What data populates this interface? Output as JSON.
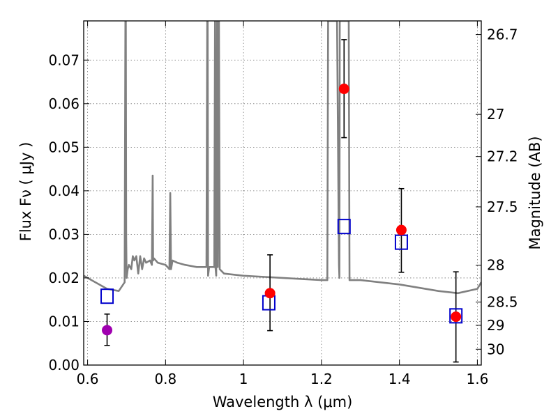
{
  "chart_data": {
    "type": "scatter",
    "title": "",
    "xlabel": "Wavelength  λ (μm)",
    "ylabel": "Flux  Fν ( μJy )",
    "ylabel_right": "Magnitude (AB)",
    "xlim": [
      0.59,
      1.61
    ],
    "ylim": [
      0.0,
      0.079
    ],
    "grid": true,
    "x_ticks": [
      0.6,
      0.8,
      1.0,
      1.2,
      1.4,
      1.6
    ],
    "x_tick_labels": [
      "0.6",
      "0.8",
      "1",
      "1.2",
      "1.4",
      "1.6"
    ],
    "y_ticks": [
      0.0,
      0.01,
      0.02,
      0.03,
      0.04,
      0.05,
      0.06,
      0.07
    ],
    "y_tick_labels": [
      "0.00",
      "0.01",
      "0.02",
      "0.03",
      "0.04",
      "0.05",
      "0.06",
      "0.07"
    ],
    "right_ticks": [
      26.7,
      27.0,
      27.2,
      27.5,
      28.0,
      28.5,
      29.0,
      30.0
    ],
    "right_tick_labels": [
      "26.7",
      "27",
      "27.2",
      "27.5",
      "28",
      "28.5",
      "29",
      "30"
    ],
    "colors": {
      "observed": "#ff0000",
      "observed_extra": "#a000b0",
      "model": "#0000cc",
      "spectrum": "#808080",
      "errorbar": "#000000"
    },
    "observed": [
      {
        "x": 1.068,
        "y": 0.0165,
        "yerr": [
          0.0086,
          0.0088
        ]
      },
      {
        "x": 1.258,
        "y": 0.0634,
        "yerr": [
          0.0112,
          0.0113
        ]
      },
      {
        "x": 1.405,
        "y": 0.031,
        "yerr": [
          0.0097,
          0.0095
        ]
      },
      {
        "x": 1.545,
        "y": 0.0111,
        "yerr": [
          0.0104,
          0.0103
        ]
      }
    ],
    "observed_extra": [
      {
        "x": 0.65,
        "y": 0.008,
        "yerr": [
          0.0035,
          0.0037
        ]
      }
    ],
    "model": [
      {
        "x": 0.65,
        "y": 0.0158
      },
      {
        "x": 1.065,
        "y": 0.0143
      },
      {
        "x": 1.258,
        "y": 0.0318
      },
      {
        "x": 1.405,
        "y": 0.0282
      },
      {
        "x": 1.545,
        "y": 0.0113
      }
    ],
    "spectrum": {
      "x": [
        0.59,
        0.62,
        0.65,
        0.68,
        0.695,
        0.697,
        0.698,
        0.699,
        0.7,
        0.703,
        0.706,
        0.712,
        0.716,
        0.72,
        0.725,
        0.73,
        0.735,
        0.74,
        0.745,
        0.75,
        0.76,
        0.765,
        0.767,
        0.768,
        0.77,
        0.78,
        0.8,
        0.81,
        0.812,
        0.814,
        0.818,
        0.83,
        0.85,
        0.88,
        0.905,
        0.907,
        0.908,
        0.909,
        0.912,
        0.925,
        0.927,
        0.928,
        0.93,
        0.932,
        0.934,
        0.936,
        0.937,
        0.939,
        0.95,
        1.0,
        1.1,
        1.2,
        1.215,
        1.217,
        1.22,
        1.222,
        1.223,
        1.24,
        1.245,
        1.246,
        1.247,
        1.248,
        1.25,
        1.26,
        1.27,
        1.272,
        1.3,
        1.4,
        1.5,
        1.55,
        1.6,
        1.61
      ],
      "y": [
        0.0205,
        0.019,
        0.0175,
        0.017,
        0.019,
        0.079,
        0.079,
        0.03,
        0.02,
        0.022,
        0.023,
        0.022,
        0.025,
        0.024,
        0.025,
        0.021,
        0.025,
        0.022,
        0.0245,
        0.0235,
        0.024,
        0.023,
        0.0435,
        0.024,
        0.0245,
        0.0235,
        0.023,
        0.022,
        0.0395,
        0.022,
        0.024,
        0.0235,
        0.023,
        0.0225,
        0.0225,
        0.079,
        0.079,
        0.0205,
        0.0225,
        0.0225,
        0.079,
        0.0225,
        0.0205,
        0.079,
        0.0225,
        0.079,
        0.079,
        0.022,
        0.021,
        0.0205,
        0.02,
        0.0195,
        0.0195,
        0.079,
        0.079,
        0.079,
        0.079,
        0.079,
        0.023,
        0.02,
        0.079,
        0.079,
        0.079,
        0.079,
        0.079,
        0.0195,
        0.0195,
        0.0185,
        0.017,
        0.0165,
        0.0175,
        0.019
      ]
    }
  }
}
